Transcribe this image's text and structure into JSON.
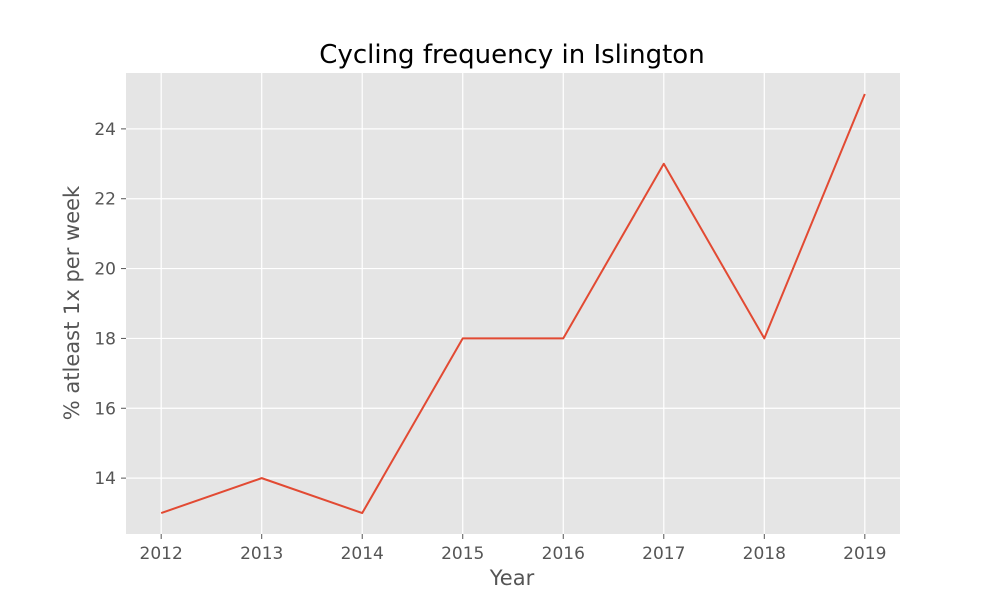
{
  "chart_data": {
    "type": "line",
    "title": "Cycling frequency in Islington",
    "xlabel": "Year",
    "ylabel": "% atleast 1x per week",
    "x": [
      2012,
      2013,
      2014,
      2015,
      2016,
      2017,
      2018,
      2019
    ],
    "series": [
      {
        "values": [
          13,
          14,
          13,
          18,
          18,
          23,
          18,
          25
        ]
      }
    ],
    "x_ticks": [
      "2012",
      "2013",
      "2014",
      "2015",
      "2016",
      "2017",
      "2018",
      "2019"
    ],
    "y_ticks": [
      "14",
      "16",
      "18",
      "20",
      "22",
      "24"
    ],
    "xlim": [
      2011.65,
      2019.35
    ],
    "ylim": [
      12.4,
      25.6
    ],
    "grid": true,
    "style": {
      "line_color": "#E24A33",
      "plot_background": "#E5E5E5",
      "grid_color": "#FFFFFF"
    }
  }
}
